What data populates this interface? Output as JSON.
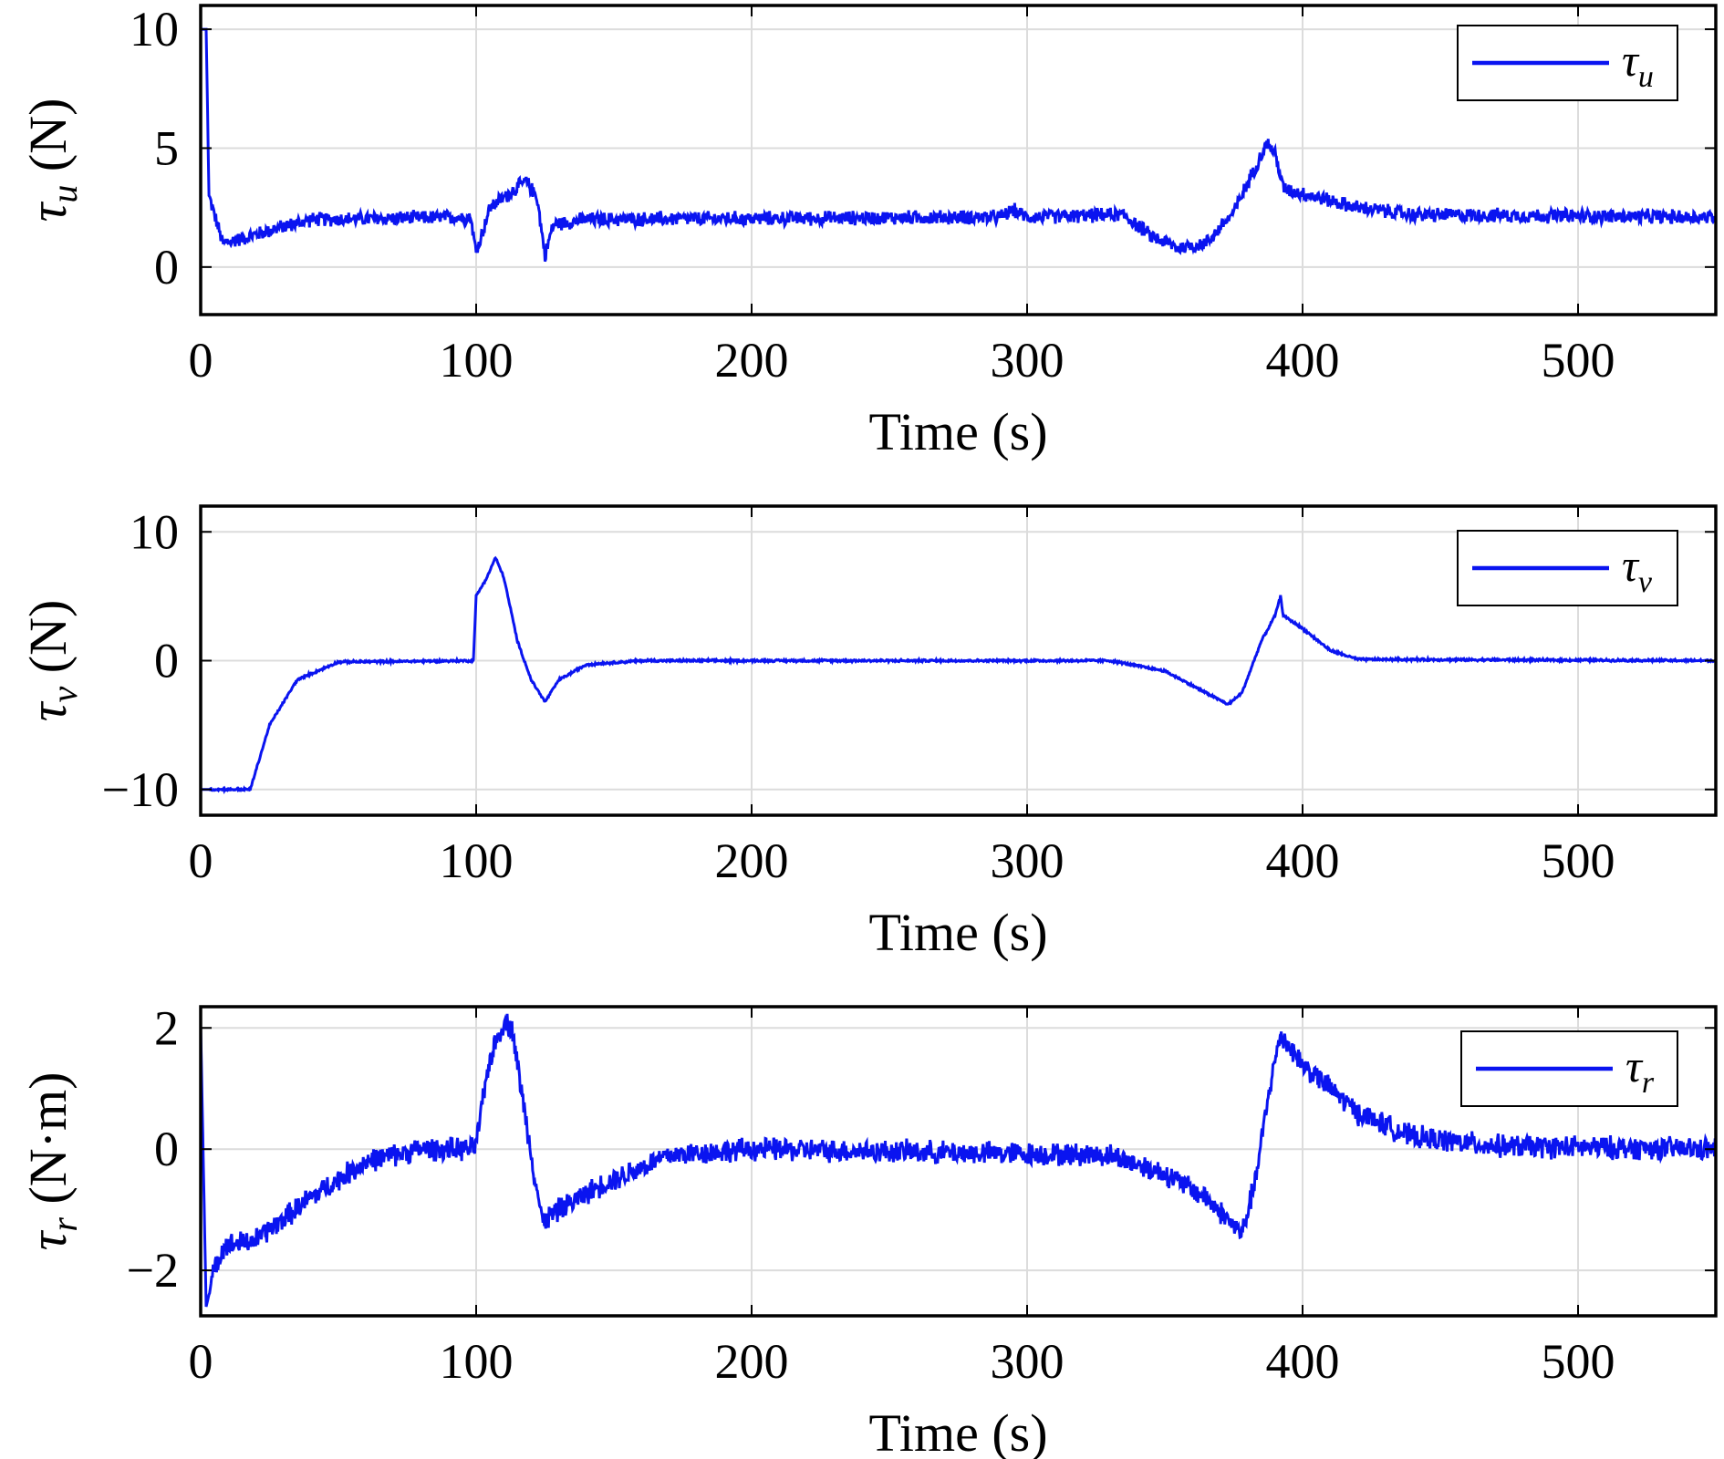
{
  "chart_data": [
    {
      "type": "line",
      "xlabel": "Time (s)",
      "ylabel": {
        "symbol": "τ",
        "sub": "u",
        "unit": " (N)"
      },
      "legend": {
        "symbol": "τ",
        "sub": "u",
        "placement": "top-right"
      },
      "xlim": [
        0,
        550
      ],
      "ylim": [
        -2,
        11
      ],
      "xticks": [
        0,
        100,
        200,
        300,
        400,
        500
      ],
      "yticks": [
        0,
        5,
        10
      ],
      "ytick_labels": [
        "0",
        "5",
        "10"
      ],
      "grid": true,
      "color": "#0a14f0",
      "noise": 0.35,
      "x": [
        0,
        2,
        3,
        8,
        15,
        30,
        40,
        98,
        100,
        105,
        118,
        122,
        125,
        128,
        140,
        290,
        295,
        300,
        335,
        345,
        355,
        365,
        375,
        382,
        387,
        390,
        393,
        410,
        420,
        440,
        550
      ],
      "y": [
        10,
        10,
        3,
        1,
        1.2,
        1.7,
        2,
        2.1,
        0.6,
        2.5,
        3.6,
        3,
        0.5,
        1.8,
        2,
        2.1,
        2.4,
        2.1,
        2.2,
        1.3,
        0.8,
        1,
        2.3,
        4,
        5.2,
        4.8,
        3.3,
        2.8,
        2.5,
        2.2,
        2.1
      ]
    },
    {
      "type": "line",
      "xlabel": "Time (s)",
      "ylabel": {
        "symbol": "τ",
        "sub": "v",
        "unit": " (N)"
      },
      "legend": {
        "symbol": "τ",
        "sub": "v",
        "placement": "top-right"
      },
      "xlim": [
        0,
        550
      ],
      "ylim": [
        -12,
        12
      ],
      "xticks": [
        0,
        100,
        200,
        300,
        400,
        500
      ],
      "yticks": [
        -10,
        0,
        10
      ],
      "ytick_labels": [
        "−10",
        "0",
        "10"
      ],
      "grid": true,
      "color": "#0a14f0",
      "noise": 0.1,
      "x": [
        0,
        18,
        25,
        35,
        50,
        99,
        100,
        104,
        107,
        110,
        115,
        120,
        125,
        130,
        140,
        160,
        330,
        350,
        365,
        373,
        378,
        385,
        390,
        392,
        393,
        400,
        410,
        420,
        550
      ],
      "y": [
        -10,
        -10,
        -5,
        -1.5,
        -0.1,
        0,
        5,
        6.5,
        8,
        6.5,
        1.5,
        -1.5,
        -3.2,
        -1.5,
        -0.3,
        0,
        0,
        -0.8,
        -2.5,
        -3.4,
        -2.5,
        1.5,
        3.5,
        5,
        3.5,
        2.5,
        0.8,
        0.1,
        0
      ]
    },
    {
      "type": "line",
      "xlabel": "Time (s)",
      "ylabel": {
        "symbol": "τ",
        "sub": "r",
        "unit": " (N·m)"
      },
      "legend": {
        "symbol": "τ",
        "sub": "r",
        "placement": "top-right"
      },
      "xlim": [
        0,
        550
      ],
      "ylim": [
        -2.75,
        2.35
      ],
      "xticks": [
        0,
        100,
        200,
        300,
        400,
        500
      ],
      "yticks": [
        -2,
        0,
        2
      ],
      "ytick_labels": [
        "−2",
        "0",
        "2"
      ],
      "grid": true,
      "color": "#0a14f0",
      "noise": 0.22,
      "x": [
        0,
        2,
        5,
        8,
        20,
        40,
        60,
        80,
        99,
        100,
        105,
        110,
        113,
        118,
        124,
        130,
        145,
        170,
        200,
        330,
        350,
        365,
        378,
        383,
        388,
        392,
        400,
        420,
        440,
        470,
        550
      ],
      "y": [
        2,
        -2.6,
        -2,
        -1.6,
        -1.5,
        -0.8,
        -0.2,
        0,
        0,
        0.1,
        1.5,
        2.1,
        2,
        0.5,
        -1.2,
        -1,
        -0.6,
        -0.1,
        0,
        -0.1,
        -0.4,
        -0.8,
        -1.4,
        -0.5,
        1,
        1.9,
        1.4,
        0.6,
        0.2,
        0.05,
        0
      ]
    }
  ]
}
